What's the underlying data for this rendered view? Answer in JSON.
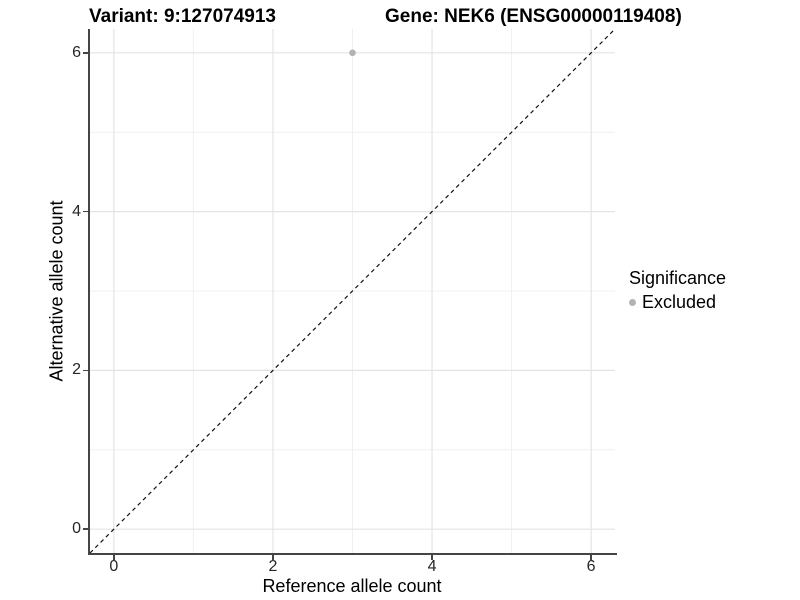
{
  "header": {
    "title_left": "Variant: 9:127074913",
    "title_right": "Gene: NEK6 (ENSG00000119408)"
  },
  "chart_data": {
    "type": "scatter",
    "title": "Variant: 9:127074913   Gene: NEK6 (ENSG00000119408)",
    "xlabel": "Reference allele count",
    "ylabel": "Alternative allele count",
    "xlim": [
      -0.3,
      6.3
    ],
    "ylim": [
      -0.3,
      6.3
    ],
    "x_major_ticks": [
      0,
      2,
      4,
      6
    ],
    "x_minor_ticks": [
      1,
      3,
      5
    ],
    "y_major_ticks": [
      0,
      2,
      4,
      6
    ],
    "y_minor_ticks": [
      1,
      3,
      5
    ],
    "grid": "major and minor gridlines on, white background",
    "points": [
      {
        "x": 3,
        "y": 6,
        "series": "Excluded",
        "color": "#b3b3b3",
        "radius_px": 3.3
      }
    ],
    "reference_line": {
      "type": "identity y=x",
      "from": [
        -0.3,
        -0.3
      ],
      "to": [
        6.3,
        6.3
      ],
      "style": "dashed",
      "color": "#111111"
    },
    "legend": {
      "title": "Significance",
      "position": "right",
      "items": [
        {
          "label": "Excluded",
          "color": "#b3b3b3",
          "marker": "circle"
        }
      ]
    }
  },
  "colors": {
    "background": "#ffffff",
    "axis_line": "#454545",
    "grid_major": "#e4e4e4",
    "grid_minor": "#f0f0f0",
    "tick_label": "#262626",
    "point": "#b3b3b3",
    "dashed_line": "#111111"
  }
}
